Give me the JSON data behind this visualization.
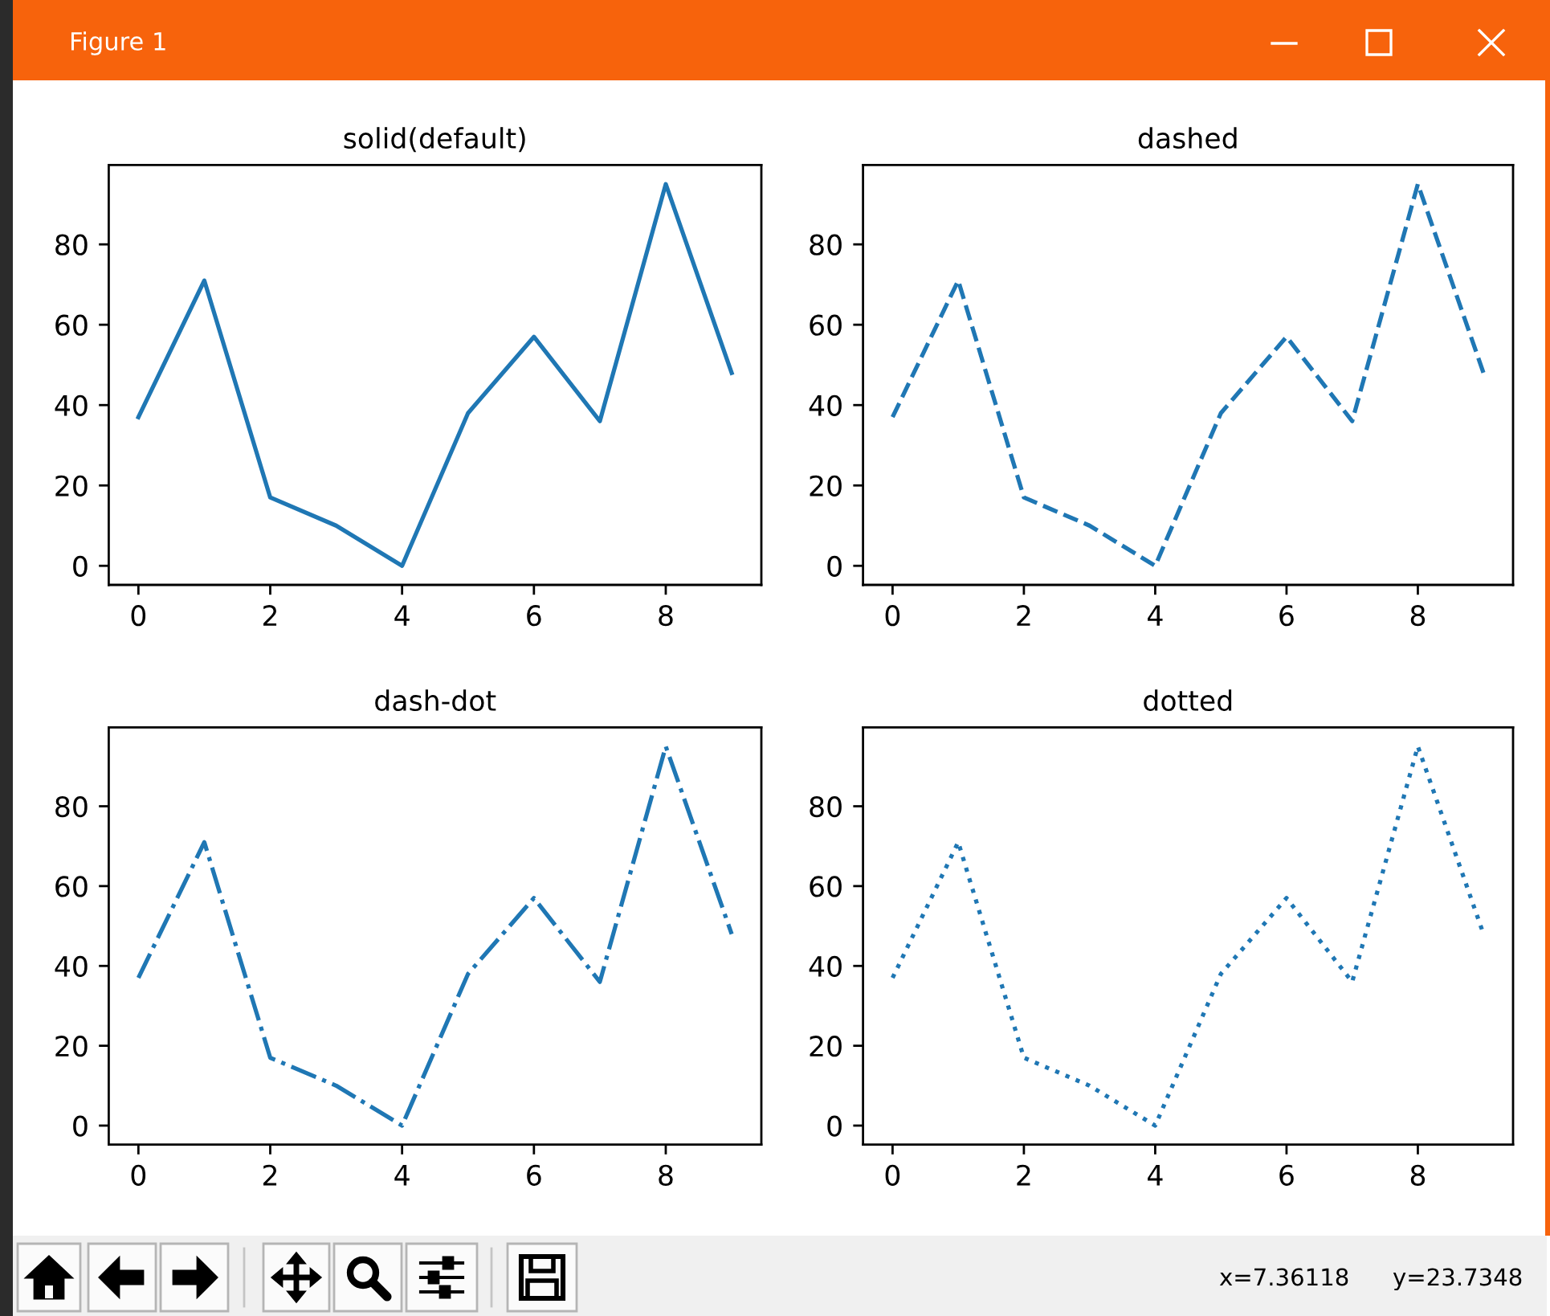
{
  "chart_data": [
    {
      "type": "line",
      "title": "solid(default)",
      "x": [
        0,
        1,
        2,
        3,
        4,
        5,
        6,
        7,
        8,
        9
      ],
      "values": [
        37,
        71,
        17,
        10,
        0,
        38,
        57,
        36,
        95,
        48
      ],
      "color": "#1f77b4",
      "line_style": "solid",
      "xlim": [
        -0.45,
        9.45
      ],
      "ylim": [
        -4.75,
        99.75
      ],
      "xticks": [
        0,
        2,
        4,
        6,
        8
      ],
      "yticks": [
        0,
        20,
        40,
        60,
        80
      ]
    },
    {
      "type": "line",
      "title": "dashed",
      "x": [
        0,
        1,
        2,
        3,
        4,
        5,
        6,
        7,
        8,
        9
      ],
      "values": [
        37,
        71,
        17,
        10,
        0,
        38,
        57,
        36,
        95,
        48
      ],
      "color": "#1f77b4",
      "line_style": "dashed",
      "xlim": [
        -0.45,
        9.45
      ],
      "ylim": [
        -4.75,
        99.75
      ],
      "xticks": [
        0,
        2,
        4,
        6,
        8
      ],
      "yticks": [
        0,
        20,
        40,
        60,
        80
      ]
    },
    {
      "type": "line",
      "title": "dash-dot",
      "x": [
        0,
        1,
        2,
        3,
        4,
        5,
        6,
        7,
        8,
        9
      ],
      "values": [
        37,
        71,
        17,
        10,
        0,
        38,
        57,
        36,
        95,
        48
      ],
      "color": "#1f77b4",
      "line_style": "dashdot",
      "xlim": [
        -0.45,
        9.45
      ],
      "ylim": [
        -4.75,
        99.75
      ],
      "xticks": [
        0,
        2,
        4,
        6,
        8
      ],
      "yticks": [
        0,
        20,
        40,
        60,
        80
      ]
    },
    {
      "type": "line",
      "title": "dotted",
      "x": [
        0,
        1,
        2,
        3,
        4,
        5,
        6,
        7,
        8,
        9
      ],
      "values": [
        37,
        71,
        17,
        10,
        0,
        38,
        57,
        36,
        95,
        48
      ],
      "color": "#1f77b4",
      "line_style": "dotted",
      "xlim": [
        -0.45,
        9.45
      ],
      "ylim": [
        -4.75,
        99.75
      ],
      "xticks": [
        0,
        2,
        4,
        6,
        8
      ],
      "yticks": [
        0,
        20,
        40,
        60,
        80
      ]
    },
    {
      "type": "other",
      "annotations": [
        "Figure 1",
        "x=7.36118",
        "y=23.7348"
      ]
    }
  ]
}
